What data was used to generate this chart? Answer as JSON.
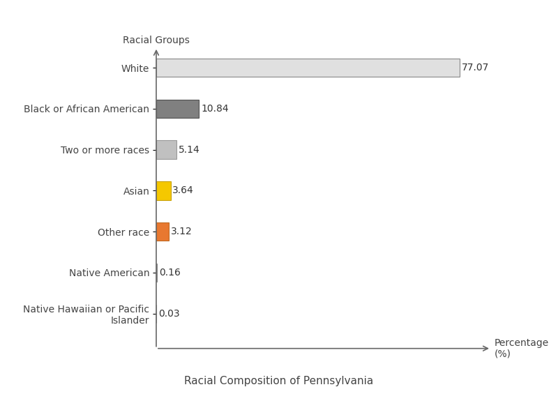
{
  "categories": [
    "White",
    "Black or African American",
    "Two or more races",
    "Asian",
    "Other race",
    "Native American",
    "Native Hawaiian or Pacific\nIslander"
  ],
  "values": [
    77.07,
    10.84,
    5.14,
    3.64,
    3.12,
    0.16,
    0.03
  ],
  "bar_colors": [
    "#e0e0e0",
    "#808080",
    "#c0c0c0",
    "#f5c800",
    "#e87830",
    "#e0e0e0",
    "#e0e0e0"
  ],
  "bar_edge_colors": [
    "#888888",
    "#505050",
    "#999999",
    "#c8a000",
    "#c06820",
    "#888888",
    "#888888"
  ],
  "value_labels": [
    "77.07",
    "10.84",
    "5.14",
    "3.64",
    "3.12",
    "0.16",
    "0.03"
  ],
  "xlabel": "Percentage\n(%)",
  "ylabel": "Racial Groups",
  "title": "Racial Composition of Pennsylvania",
  "xlim": [
    0,
    85
  ],
  "background_color": "#ffffff",
  "label_fontsize": 10,
  "title_fontsize": 11,
  "bar_height": 0.45
}
